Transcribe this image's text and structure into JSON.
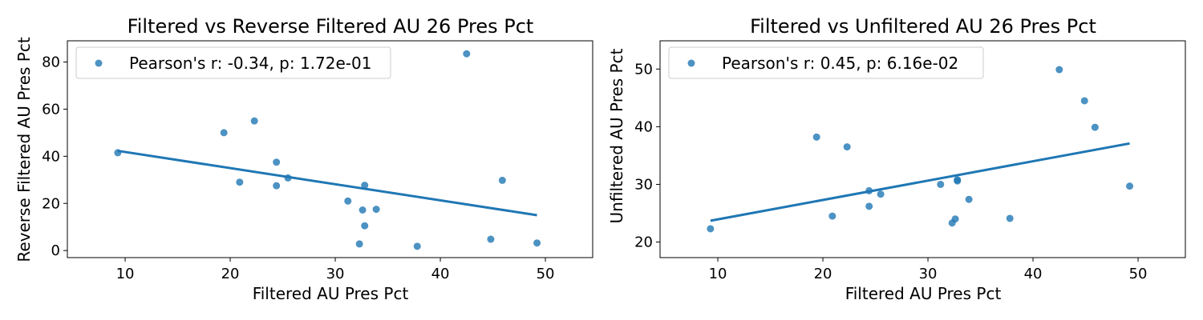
{
  "colors": {
    "series": "#1f77b4",
    "axis": "#000000",
    "legend_border": "#cccccc"
  },
  "chart_data": [
    {
      "type": "scatter",
      "title": "Filtered vs Reverse Filtered AU 26 Pres Pct",
      "xlabel": "Filtered AU Pres Pct",
      "ylabel": "Reverse Filtered AU Pres Pct",
      "xlim": [
        4.5,
        54.5
      ],
      "ylim": [
        -3,
        89
      ],
      "xticks": [
        10,
        20,
        30,
        40,
        50
      ],
      "yticks": [
        0,
        20,
        40,
        60,
        80
      ],
      "legend": {
        "label": "Pearson's r: -0.34, p: 1.72e-01",
        "position": "upper left"
      },
      "grid": false,
      "x": [
        9.3,
        19.4,
        20.9,
        22.3,
        24.4,
        24.4,
        25.5,
        31.2,
        32.3,
        32.6,
        32.8,
        32.8,
        33.9,
        37.8,
        42.5,
        44.8,
        45.9,
        49.2
      ],
      "y": [
        41.5,
        50.0,
        29.0,
        55.0,
        37.5,
        27.5,
        30.8,
        21.0,
        2.8,
        17.2,
        27.7,
        10.5,
        17.5,
        1.8,
        83.5,
        4.8,
        29.8,
        3.2
      ],
      "fit_line": {
        "x": [
          9.3,
          49.2
        ],
        "y": [
          42.3,
          15.0
        ]
      }
    },
    {
      "type": "scatter",
      "title": "Filtered vs Unfiltered AU 26 Pres Pct",
      "xlabel": "Filtered AU Pres Pct",
      "ylabel": "Unfiltered AU Pres Pct",
      "xlim": [
        4.5,
        54.5
      ],
      "ylim": [
        17.3,
        54.9
      ],
      "xticks": [
        10,
        20,
        30,
        40,
        50
      ],
      "yticks": [
        20,
        30,
        40,
        50
      ],
      "legend": {
        "label": "Pearson's r: 0.45, p: 6.16e-02",
        "position": "upper left"
      },
      "grid": false,
      "x": [
        9.3,
        19.4,
        20.9,
        22.3,
        24.4,
        24.4,
        25.5,
        31.2,
        32.3,
        32.6,
        32.8,
        32.8,
        33.9,
        37.8,
        42.5,
        44.9,
        45.9,
        49.2
      ],
      "y": [
        22.3,
        38.2,
        24.5,
        36.5,
        28.9,
        26.2,
        28.3,
        30.0,
        23.3,
        24.0,
        30.8,
        30.6,
        27.4,
        24.1,
        49.9,
        44.5,
        39.9,
        29.7
      ],
      "fit_line": {
        "x": [
          9.3,
          49.2
        ],
        "y": [
          23.7,
          37.1
        ]
      }
    }
  ]
}
